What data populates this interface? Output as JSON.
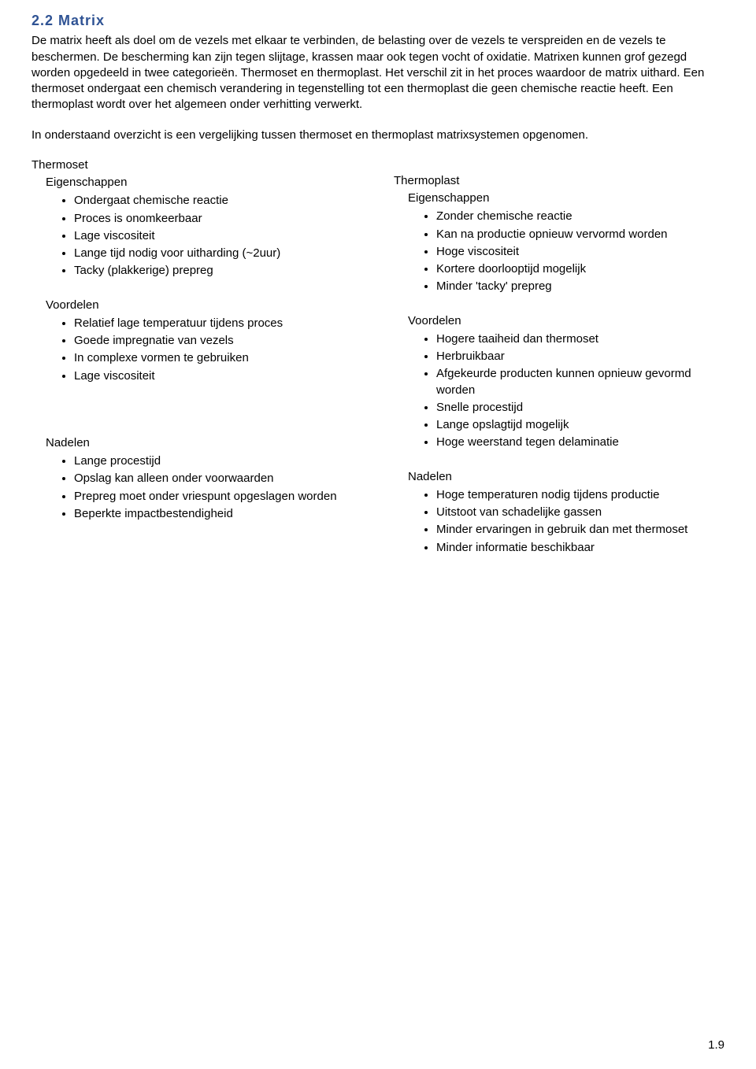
{
  "heading": "2.2 Matrix",
  "para1": "De matrix heeft als doel om de vezels met elkaar te verbinden, de belasting over de vezels te verspreiden en de vezels te beschermen. De bescherming kan zijn tegen slijtage, krassen maar ook tegen vocht of oxidatie. Matrixen kunnen grof gezegd worden opgedeeld in twee categorieën. Thermoset en thermoplast. Het verschil zit in het proces waardoor de matrix uithard. Een thermoset ondergaat een chemisch verandering in tegenstelling tot een thermoplast die geen chemische reactie heeft. Een thermoplast wordt over het algemeen onder verhitting verwerkt.",
  "para2": "In onderstaand overzicht is een vergelijking tussen thermoset en thermoplast matrixsystemen opgenomen.",
  "left": {
    "title": "Thermoset",
    "sec1": "Eigenschappen",
    "sec1items": [
      "Ondergaat chemische reactie",
      "Proces is onomkeerbaar",
      "Lage viscositeit",
      "Lange tijd nodig voor uitharding (~2uur)",
      "Tacky (plakkerige) prepreg"
    ],
    "sec2": "Voordelen",
    "sec2items": [
      "Relatief lage temperatuur tijdens proces",
      "Goede impregnatie van vezels",
      "In complexe vormen te gebruiken",
      "Lage viscositeit"
    ],
    "sec3": "Nadelen",
    "sec3items": [
      "Lange procestijd",
      "Opslag kan alleen onder voorwaarden",
      "Prepreg moet onder vriespunt opgeslagen worden",
      "Beperkte impactbestendigheid"
    ]
  },
  "right": {
    "title": "Thermoplast",
    "sec1": "Eigenschappen",
    "sec1items": [
      "Zonder chemische reactie",
      "Kan na productie opnieuw vervormd worden",
      "Hoge viscositeit",
      "Kortere doorlooptijd mogelijk",
      "Minder 'tacky' prepreg"
    ],
    "sec2": "Voordelen",
    "sec2items": [
      "Hogere taaiheid dan thermoset",
      "Herbruikbaar",
      "Afgekeurde producten kunnen opnieuw gevormd worden",
      "Snelle procestijd",
      "Lange opslagtijd mogelijk",
      "Hoge weerstand tegen delaminatie"
    ],
    "sec3": "Nadelen",
    "sec3items": [
      "Hoge temperaturen nodig tijdens productie",
      "Uitstoot van schadelijke gassen",
      "Minder ervaringen in gebruik dan met thermoset",
      "Minder informatie beschikbaar"
    ]
  },
  "pageNumber": "1.9"
}
